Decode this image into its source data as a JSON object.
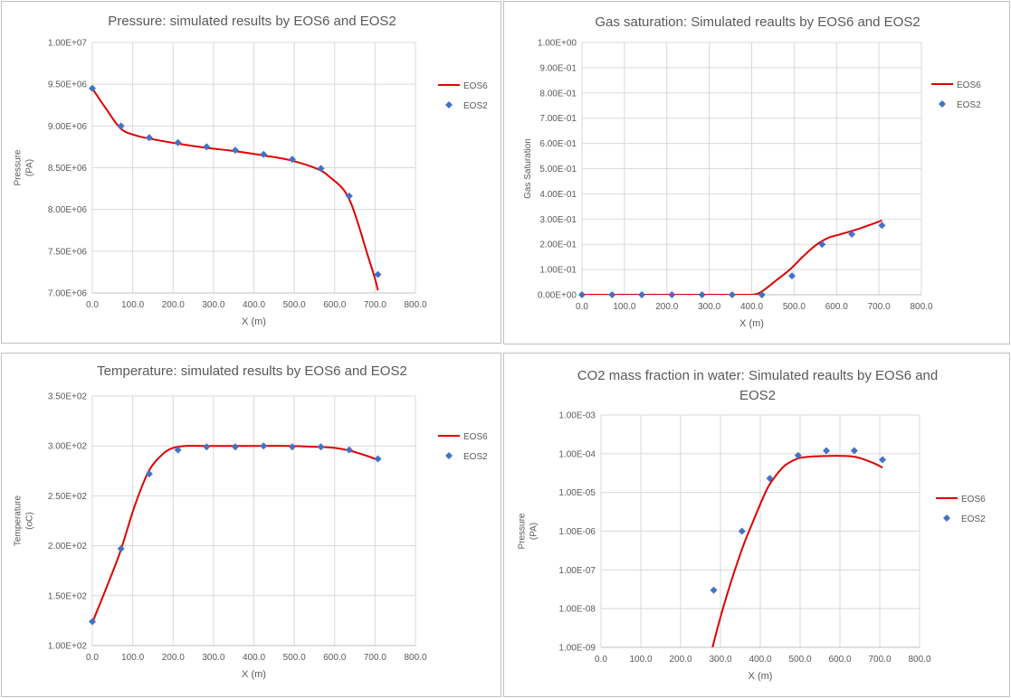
{
  "colors": {
    "eos6": "#e00000",
    "eos2": "#4472c4",
    "grid": "#d9d9d9",
    "text": "#595959"
  },
  "chart_data": [
    {
      "type": "scatter",
      "title": "Pressure: simulated results by EOS6 and EOS2",
      "xlabel": "X (m)",
      "ylabel": [
        "Pressure",
        "(PA)"
      ],
      "xlim": [
        0,
        800
      ],
      "ylim": [
        7000000,
        10000000
      ],
      "yscale": "linear",
      "xticks": [
        "0.0",
        "100.0",
        "200.0",
        "300.0",
        "400.0",
        "500.0",
        "600.0",
        "700.0",
        "800.0"
      ],
      "yticks": [
        "7.00E+06",
        "7.50E+06",
        "8.00E+06",
        "8.50E+06",
        "9.00E+06",
        "9.50E+06",
        "1.00E+07"
      ],
      "legend": [
        "EOS6",
        "EOS2"
      ],
      "series": [
        {
          "name": "EOS6",
          "style": "line",
          "x": [
            0,
            35,
            70,
            105,
            140,
            210,
            280,
            350,
            420,
            490,
            560,
            590,
            620,
            640,
            660,
            680,
            700,
            707
          ],
          "y": [
            9450000,
            9200000,
            8970000,
            8890000,
            8850000,
            8790000,
            8740000,
            8700000,
            8650000,
            8590000,
            8480000,
            8380000,
            8250000,
            8080000,
            7800000,
            7480000,
            7170000,
            7030000
          ]
        },
        {
          "name": "EOS2",
          "style": "marker",
          "x": [
            0,
            71,
            141,
            212,
            283,
            354,
            424,
            495,
            566,
            636,
            707
          ],
          "y": [
            9450000,
            9000000,
            8860000,
            8800000,
            8750000,
            8710000,
            8660000,
            8600000,
            8490000,
            8160000,
            7220000
          ]
        }
      ]
    },
    {
      "type": "scatter",
      "title": "Gas saturation: Simulated reaults by EOS6 and EOS2",
      "xlabel": "X (m)",
      "ylabel": [
        "Gas Saturation"
      ],
      "xlim": [
        0,
        800
      ],
      "ylim": [
        0,
        1
      ],
      "yscale": "linear",
      "xticks": [
        "0.0",
        "100.0",
        "200.0",
        "300.0",
        "400.0",
        "500.0",
        "600.0",
        "700.0",
        "800.0"
      ],
      "yticks": [
        "0.00E+00",
        "1.00E-01",
        "2.00E-01",
        "3.00E-01",
        "4.00E-01",
        "5.00E-01",
        "6.00E-01",
        "7.00E-01",
        "8.00E-01",
        "9.00E-01",
        "1.00E+00"
      ],
      "legend": [
        "EOS6",
        "EOS2"
      ],
      "series": [
        {
          "name": "EOS6",
          "style": "line",
          "x": [
            0,
            100,
            200,
            300,
            380,
            410,
            430,
            460,
            490,
            520,
            550,
            580,
            610,
            650,
            700,
            707
          ],
          "y": [
            0,
            0,
            0,
            0,
            0,
            0.002,
            0.02,
            0.06,
            0.1,
            0.15,
            0.195,
            0.225,
            0.24,
            0.26,
            0.29,
            0.295
          ]
        },
        {
          "name": "EOS2",
          "style": "marker",
          "x": [
            0,
            71,
            141,
            212,
            283,
            354,
            424,
            495,
            566,
            636,
            707
          ],
          "y": [
            0,
            0,
            0,
            0,
            0,
            0,
            0,
            0.075,
            0.2,
            0.24,
            0.275
          ]
        }
      ]
    },
    {
      "type": "scatter",
      "title": "Temperature: simulated results by EOS6 and EOS2",
      "xlabel": "X (m)",
      "ylabel": [
        "Temperature",
        "(oC)"
      ],
      "xlim": [
        0,
        800
      ],
      "ylim": [
        100,
        350
      ],
      "yscale": "linear",
      "xticks": [
        "0.0",
        "100.0",
        "200.0",
        "300.0",
        "400.0",
        "500.0",
        "600.0",
        "700.0",
        "800.0"
      ],
      "yticks": [
        "1.00E+02",
        "1.50E+02",
        "2.00E+02",
        "2.50E+02",
        "3.00E+02",
        "3.50E+02"
      ],
      "legend": [
        "EOS6",
        "EOS2"
      ],
      "series": [
        {
          "name": "EOS6",
          "style": "line",
          "x": [
            0,
            35,
            70,
            105,
            140,
            175,
            200,
            230,
            280,
            350,
            420,
            490,
            560,
            600,
            640,
            680,
            707
          ],
          "y": [
            123,
            158,
            195,
            240,
            275,
            292,
            298,
            300,
            300,
            300,
            300,
            300,
            299,
            298,
            295,
            290,
            286
          ]
        },
        {
          "name": "EOS2",
          "style": "marker",
          "x": [
            0,
            71,
            141,
            212,
            283,
            354,
            424,
            495,
            566,
            636,
            707
          ],
          "y": [
            124,
            197,
            272,
            296,
            299,
            299,
            300,
            299,
            299,
            296,
            287
          ]
        }
      ]
    },
    {
      "type": "scatter",
      "title": [
        "CO2 mass fraction in water: Simulated reaults by EOS6 and",
        "EOS2"
      ],
      "xlabel": "X (m)",
      "ylabel": [
        "Pressure",
        "(PA)"
      ],
      "xlim": [
        0,
        800
      ],
      "ylim": [
        1e-09,
        0.001
      ],
      "yscale": "log",
      "xticks": [
        "0.0",
        "100.0",
        "200.0",
        "300.0",
        "400.0",
        "500.0",
        "600.0",
        "700.0",
        "800.0"
      ],
      "yticks": [
        "1.00E-09",
        "1.00E-08",
        "1.00E-07",
        "1.00E-06",
        "1.00E-05",
        "1.00E-04",
        "1.00E-03"
      ],
      "legend": [
        "EOS6",
        "EOS2"
      ],
      "series": [
        {
          "name": "EOS6",
          "style": "line",
          "x": [
            280,
            300,
            320,
            340,
            360,
            380,
            400,
            420,
            440,
            460,
            480,
            500,
            530,
            560,
            600,
            640,
            680,
            707
          ],
          "y": [
            1e-09,
            6e-09,
            3e-08,
            1.3e-07,
            5e-07,
            1.6e-06,
            5e-06,
            1.4e-05,
            2.8e-05,
            4.8e-05,
            6.5e-05,
            7.8e-05,
            8.5e-05,
            8.7e-05,
            8.8e-05,
            8.2e-05,
            6e-05,
            4.4e-05
          ]
        },
        {
          "name": "EOS2",
          "style": "marker",
          "x": [
            283,
            354,
            424,
            495,
            566,
            636,
            707
          ],
          "y": [
            3e-08,
            1e-06,
            2.3e-05,
            9e-05,
            0.00012,
            0.00012,
            7e-05
          ]
        }
      ]
    }
  ]
}
